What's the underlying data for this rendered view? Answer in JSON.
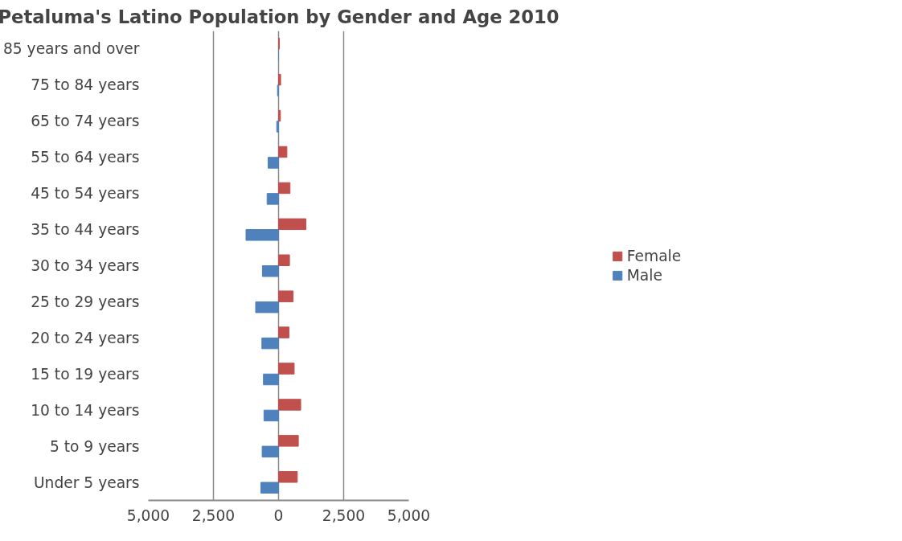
{
  "chart_data": {
    "type": "bar",
    "orientation": "horizontal",
    "title": "Petaluma's Latino Population by Gender and Age 2010",
    "categories": [
      "85 years and over",
      "75 to 84 years",
      "65 to 74 years",
      "55 to 64 years",
      "45 to 54 years",
      "35 to 44 years",
      "30 to 34 years",
      "25 to 29 years",
      "20 to 24 years",
      "15 to 19 years",
      "10 to 14 years",
      "5 to 9 years",
      "Under 5 years"
    ],
    "series": [
      {
        "name": "Female",
        "color": "#c0504d",
        "values": [
          30,
          80,
          70,
          320,
          440,
          1050,
          420,
          560,
          400,
          600,
          850,
          760,
          720
        ]
      },
      {
        "name": "Male",
        "color": "#4f81bd",
        "values": [
          0,
          -40,
          -70,
          -400,
          -440,
          -1250,
          -620,
          -880,
          -640,
          -580,
          -560,
          -630,
          -680
        ]
      }
    ],
    "xlim": [
      -5000,
      5000
    ],
    "xticks": [
      {
        "value": -5000,
        "label": "5,000"
      },
      {
        "value": -2500,
        "label": "2,500"
      },
      0,
      {
        "value": 2500,
        "label": "2,500"
      },
      {
        "value": 5000,
        "label": "5,000"
      }
    ],
    "grid": "x",
    "legend": "right"
  }
}
